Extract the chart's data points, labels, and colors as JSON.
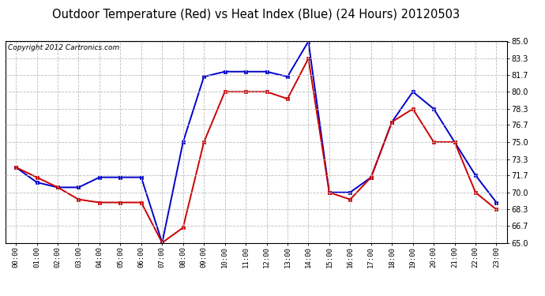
{
  "title": "Outdoor Temperature (Red) vs Heat Index (Blue) (24 Hours) 20120503",
  "copyright": "Copyright 2012 Cartronics.com",
  "hours": [
    "00:00",
    "01:00",
    "02:00",
    "03:00",
    "04:00",
    "05:00",
    "06:00",
    "07:00",
    "08:00",
    "09:00",
    "10:00",
    "11:00",
    "12:00",
    "13:00",
    "14:00",
    "15:00",
    "16:00",
    "17:00",
    "18:00",
    "19:00",
    "20:00",
    "21:00",
    "22:00",
    "23:00"
  ],
  "temp_red": [
    72.5,
    71.5,
    70.5,
    69.3,
    69.0,
    69.0,
    69.0,
    65.0,
    66.5,
    75.0,
    80.0,
    80.0,
    80.0,
    79.3,
    83.3,
    70.0,
    69.3,
    71.5,
    77.0,
    78.3,
    75.0,
    75.0,
    70.0,
    68.3
  ],
  "heat_blue": [
    72.5,
    71.0,
    70.5,
    70.5,
    71.5,
    71.5,
    71.5,
    65.0,
    75.0,
    81.5,
    82.0,
    82.0,
    82.0,
    81.5,
    85.0,
    70.0,
    70.0,
    71.5,
    77.0,
    80.0,
    78.3,
    75.0,
    71.7,
    69.0
  ],
  "ylim": [
    65.0,
    85.0
  ],
  "yticks": [
    65.0,
    66.7,
    68.3,
    70.0,
    71.7,
    73.3,
    75.0,
    76.7,
    78.3,
    80.0,
    81.7,
    83.3,
    85.0
  ],
  "ytick_labels": [
    "65.0",
    "66.7",
    "68.3",
    "70.0",
    "71.7",
    "73.3",
    "75.0",
    "76.7",
    "78.3",
    "80.0",
    "81.7",
    "83.3",
    "85.0"
  ],
  "bg_color": "#ffffff",
  "plot_bg_color": "#ffffff",
  "grid_color": "#bbbbbb",
  "red_color": "#cc0000",
  "blue_color": "#0000cc",
  "title_fontsize": 10.5,
  "copyright_fontsize": 6.5,
  "marker": "s",
  "markersize": 3.0,
  "linewidth": 1.4
}
